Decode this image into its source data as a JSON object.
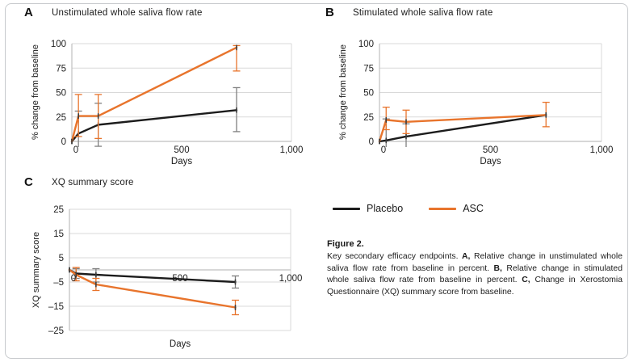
{
  "page": {
    "background": "#ffffff",
    "border_color": "#c7cacd"
  },
  "colors": {
    "placebo_line": "#1c1c1c",
    "asc_line": "#e8742c",
    "placebo_error": "#808080",
    "asc_error": "#e8742c",
    "gridline": "#d9d9d9",
    "axis_line": "#bfbfbf",
    "tick_text": "#1f1f1f",
    "marker": "#3c3c3c"
  },
  "legend": {
    "items": [
      {
        "label": "Placebo",
        "color": "#1c1c1c"
      },
      {
        "label": "ASC",
        "color": "#e8742c"
      }
    ]
  },
  "caption": {
    "heading": "Figure 2.",
    "segments": [
      {
        "t": "Key secondary efficacy endpoints. ",
        "b": false
      },
      {
        "t": "A,",
        "b": true
      },
      {
        "t": " Relative change in unstimulated whole saliva flow rate from baseline in percent. ",
        "b": false
      },
      {
        "t": "B,",
        "b": true
      },
      {
        "t": " Relative change in stimulated whole saliva flow rate from baseline in percent. ",
        "b": false
      },
      {
        "t": "C,",
        "b": true
      },
      {
        "t": " Change in Xerostomia Questionnaire (XQ) summary score from baseline.",
        "b": false
      }
    ]
  },
  "chart_data": [
    {
      "id": "A",
      "type": "line",
      "panel_label": "A",
      "title": "Unstimulated whole saliva flow rate",
      "xlabel": "Days",
      "ylabel": "% change from baseline",
      "xlim": [
        0,
        1000
      ],
      "ylim": [
        0,
        100
      ],
      "xticks": [
        {
          "v": 0,
          "label": "0"
        },
        {
          "v": 500,
          "label": "500"
        },
        {
          "v": 1000,
          "label": "1,000"
        }
      ],
      "yticks": [
        {
          "v": 0,
          "label": "0"
        },
        {
          "v": 25,
          "label": "25"
        },
        {
          "v": 50,
          "label": "50"
        },
        {
          "v": 75,
          "label": "75"
        },
        {
          "v": 100,
          "label": "100"
        }
      ],
      "grid": true,
      "legend_position": "shared-bottom-right",
      "x": [
        0,
        30,
        120,
        750
      ],
      "series": [
        {
          "name": "Placebo",
          "color": "#1c1c1c",
          "err_color": "#808080",
          "y": [
            0,
            8,
            17,
            32
          ],
          "err_lo": [
            null,
            -15,
            -5,
            10
          ],
          "err_hi": [
            null,
            31,
            39,
            55
          ]
        },
        {
          "name": "ASC",
          "color": "#e8742c",
          "err_color": "#e8742c",
          "y": [
            0,
            26,
            26,
            96
          ],
          "err_lo": [
            null,
            5,
            3,
            72
          ],
          "err_hi": [
            null,
            48,
            48,
            98
          ]
        }
      ]
    },
    {
      "id": "B",
      "type": "line",
      "panel_label": "B",
      "title": "Stimulated whole saliva flow rate",
      "xlabel": "Days",
      "ylabel": "% change from baseline",
      "xlim": [
        0,
        1000
      ],
      "ylim": [
        0,
        100
      ],
      "xticks": [
        {
          "v": 0,
          "label": "0"
        },
        {
          "v": 500,
          "label": "500"
        },
        {
          "v": 1000,
          "label": "1,000"
        }
      ],
      "yticks": [
        {
          "v": 0,
          "label": "0"
        },
        {
          "v": 25,
          "label": "25"
        },
        {
          "v": 50,
          "label": "50"
        },
        {
          "v": 75,
          "label": "75"
        },
        {
          "v": 100,
          "label": "100"
        }
      ],
      "grid": true,
      "legend_position": "shared-bottom-right",
      "x": [
        0,
        30,
        120,
        750
      ],
      "series": [
        {
          "name": "Placebo",
          "color": "#1c1c1c",
          "err_color": "#808080",
          "y": [
            0,
            1,
            5,
            27
          ],
          "err_lo": [
            null,
            -21,
            -8,
            null
          ],
          "err_hi": [
            null,
            23,
            18,
            null
          ]
        },
        {
          "name": "ASC",
          "color": "#e8742c",
          "err_color": "#e8742c",
          "y": [
            0,
            22,
            20,
            27
          ],
          "err_lo": [
            null,
            12,
            8,
            15
          ],
          "err_hi": [
            null,
            35,
            32,
            40
          ]
        }
      ]
    },
    {
      "id": "C",
      "type": "line",
      "panel_label": "C",
      "title": "XQ summary score",
      "xlabel": "Days",
      "ylabel": "XQ summary score",
      "xlim": [
        0,
        1000
      ],
      "ylim": [
        -25,
        25
      ],
      "xticks": [
        {
          "v": 0,
          "label": "0"
        },
        {
          "v": 500,
          "label": "500"
        },
        {
          "v": 1000,
          "label": "1,000"
        }
      ],
      "yticks": [
        {
          "v": 25,
          "label": "25"
        },
        {
          "v": 15,
          "label": "15"
        },
        {
          "v": 5,
          "label": "5"
        },
        {
          "v": -5,
          "label": "–5"
        },
        {
          "v": -15,
          "label": "–15"
        },
        {
          "v": -25,
          "label": "–25"
        }
      ],
      "grid": true,
      "legend_position": "shared-bottom-right",
      "x": [
        0,
        30,
        120,
        750
      ],
      "series": [
        {
          "name": "Placebo",
          "color": "#1c1c1c",
          "err_color": "#808080",
          "y": [
            0,
            -1.5,
            -2,
            -5
          ],
          "err_lo": [
            null,
            -3.5,
            -5,
            -7.5
          ],
          "err_hi": [
            null,
            0.5,
            0.5,
            -2.5
          ]
        },
        {
          "name": "ASC",
          "color": "#e8742c",
          "err_color": "#e8742c",
          "y": [
            0,
            -2,
            -6,
            -15.5
          ],
          "err_lo": [
            null,
            -4.5,
            -8.5,
            -18.5
          ],
          "err_hi": [
            null,
            1,
            -3.5,
            -12.5
          ]
        }
      ]
    }
  ]
}
